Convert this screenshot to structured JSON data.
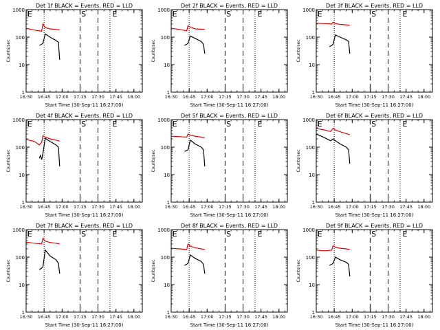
{
  "chart_data": [
    {
      "type": "line",
      "title": "Det 1f BLACK = Events, RED = LLD",
      "xlabel": "Start Time (30-Sep-11 16:27:00)",
      "ylabel": "Counts/sec",
      "y_scale": "log",
      "ylim": [
        1,
        1000
      ],
      "xlim": [
        "16:30",
        "18:07"
      ],
      "x_tick_labels": [
        "16:30",
        "16:45",
        "17:00",
        "17:15",
        "17:30",
        "17:45",
        "18:00"
      ],
      "y_tick_labels": [
        "1",
        "10",
        "100",
        "1000"
      ],
      "vlines": [
        {
          "time": "16:45",
          "style": "dotted"
        },
        {
          "time": "17:15",
          "style": "dashed"
        },
        {
          "time": "17:30",
          "style": "dashed"
        },
        {
          "time": "17:40",
          "style": "dotted"
        }
      ],
      "markers": [
        {
          "text": "E",
          "time": "16:31"
        },
        {
          "text": "S",
          "time": "17:16"
        },
        {
          "text": "E",
          "time": "17:42"
        }
      ],
      "series": [
        {
          "color": "#e00000",
          "x": [
            "16:30",
            "16:37",
            "16:43",
            "16:44",
            "16:46",
            "16:50",
            "16:55",
            "16:58"
          ],
          "y": [
            210,
            180,
            165,
            300,
            220,
            200,
            190,
            185
          ]
        },
        {
          "color": "#000000",
          "x": [
            "16:41",
            "16:43",
            "16:44",
            "16:46",
            "16:50",
            "16:55",
            "16:57",
            "16:58"
          ],
          "y": [
            50,
            55,
            60,
            130,
            100,
            75,
            65,
            15
          ]
        }
      ]
    },
    {
      "type": "line",
      "title": "Det 2f BLACK = Events, RED = LLD",
      "xlabel": "Start Time (30-Sep-11 16:27:00)",
      "ylabel": "Counts/sec",
      "y_scale": "log",
      "ylim": [
        1,
        1000
      ],
      "xlim": [
        "16:30",
        "18:07"
      ],
      "x_tick_labels": [
        "16:30",
        "16:45",
        "17:00",
        "17:15",
        "17:30",
        "17:45",
        "18:00"
      ],
      "y_tick_labels": [
        "1",
        "10",
        "100",
        "1000"
      ],
      "vlines": [
        {
          "time": "16:45",
          "style": "dotted"
        },
        {
          "time": "17:15",
          "style": "dashed"
        },
        {
          "time": "17:30",
          "style": "dashed"
        },
        {
          "time": "17:40",
          "style": "dotted"
        }
      ],
      "markers": [
        {
          "text": "E",
          "time": "16:31"
        },
        {
          "text": "S",
          "time": "17:16"
        },
        {
          "text": "E",
          "time": "17:42"
        }
      ],
      "series": [
        {
          "color": "#e00000",
          "x": [
            "16:30",
            "16:37",
            "16:43",
            "16:44",
            "16:46",
            "16:50",
            "16:55",
            "16:58"
          ],
          "y": [
            210,
            190,
            170,
            260,
            230,
            200,
            195,
            190
          ]
        },
        {
          "color": "#000000",
          "x": [
            "16:41",
            "16:43",
            "16:44",
            "16:46",
            "16:50",
            "16:55",
            "16:57",
            "16:58"
          ],
          "y": [
            50,
            55,
            60,
            110,
            90,
            70,
            55,
            25
          ]
        }
      ]
    },
    {
      "type": "line",
      "title": "Det 3f BLACK = Events, RED = LLD",
      "xlabel": "Start Time (30-Sep-11 16:27:00)",
      "ylabel": "Counts/sec",
      "y_scale": "log",
      "ylim": [
        1,
        1000
      ],
      "xlim": [
        "16:30",
        "18:07"
      ],
      "x_tick_labels": [
        "16:30",
        "16:45",
        "17:00",
        "17:15",
        "17:30",
        "17:45",
        "18:00"
      ],
      "y_tick_labels": [
        "1",
        "10",
        "100",
        "1000"
      ],
      "vlines": [
        {
          "time": "16:45",
          "style": "dotted"
        },
        {
          "time": "17:15",
          "style": "dashed"
        },
        {
          "time": "17:30",
          "style": "dashed"
        },
        {
          "time": "17:40",
          "style": "dotted"
        }
      ],
      "markers": [
        {
          "text": "E",
          "time": "16:31"
        },
        {
          "text": "S",
          "time": "17:16"
        },
        {
          "text": "E",
          "time": "17:42"
        }
      ],
      "series": [
        {
          "color": "#e00000",
          "x": [
            "16:30",
            "16:37",
            "16:43",
            "16:44",
            "16:46",
            "16:50",
            "16:55",
            "16:58"
          ],
          "y": [
            320,
            310,
            300,
            350,
            310,
            290,
            280,
            270
          ]
        },
        {
          "color": "#000000",
          "x": [
            "16:41",
            "16:43",
            "16:44",
            "16:46",
            "16:50",
            "16:55",
            "16:57",
            "16:58"
          ],
          "y": [
            45,
            50,
            55,
            120,
            100,
            80,
            70,
            25
          ]
        }
      ]
    },
    {
      "type": "line",
      "title": "Det 4f BLACK = Events, RED = LLD",
      "xlabel": "Start Time (30-Sep-11 16:27:00)",
      "ylabel": "Counts/sec",
      "y_scale": "log",
      "ylim": [
        1,
        1000
      ],
      "xlim": [
        "16:30",
        "18:07"
      ],
      "x_tick_labels": [
        "16:30",
        "16:45",
        "17:00",
        "17:15",
        "17:30",
        "17:45",
        "18:00"
      ],
      "y_tick_labels": [
        "1",
        "10",
        "100",
        "1000"
      ],
      "vlines": [
        {
          "time": "16:45",
          "style": "dotted"
        },
        {
          "time": "17:15",
          "style": "dashed"
        },
        {
          "time": "17:30",
          "style": "dashed"
        },
        {
          "time": "17:40",
          "style": "dotted"
        }
      ],
      "markers": [
        {
          "text": "E",
          "time": "16:31"
        },
        {
          "text": "S",
          "time": "17:16"
        },
        {
          "text": "E",
          "time": "17:42"
        }
      ],
      "series": [
        {
          "color": "#e00000",
          "x": [
            "16:30",
            "16:37",
            "16:41",
            "16:43",
            "16:44",
            "16:46",
            "16:50",
            "16:55",
            "16:58"
          ],
          "y": [
            190,
            160,
            120,
            150,
            260,
            230,
            200,
            180,
            165
          ]
        },
        {
          "color": "#000000",
          "x": [
            "16:41",
            "16:42",
            "16:43",
            "16:44",
            "16:46",
            "16:50",
            "16:55",
            "16:57",
            "16:58"
          ],
          "y": [
            40,
            50,
            35,
            60,
            210,
            160,
            120,
            100,
            20
          ]
        }
      ]
    },
    {
      "type": "line",
      "title": "Det 5f BLACK = Events, RED = LLD",
      "xlabel": "Start Time (30-Sep-11 16:27:00)",
      "ylabel": "Counts/sec",
      "y_scale": "log",
      "ylim": [
        1,
        1000
      ],
      "xlim": [
        "16:30",
        "18:07"
      ],
      "x_tick_labels": [
        "16:30",
        "16:45",
        "17:00",
        "17:15",
        "17:30",
        "17:45",
        "18:00"
      ],
      "y_tick_labels": [
        "1",
        "10",
        "100",
        "1000"
      ],
      "vlines": [
        {
          "time": "16:45",
          "style": "dotted"
        },
        {
          "time": "17:15",
          "style": "dashed"
        },
        {
          "time": "17:30",
          "style": "dashed"
        },
        {
          "time": "17:40",
          "style": "dotted"
        }
      ],
      "markers": [
        {
          "text": "E",
          "time": "16:31"
        },
        {
          "text": "S",
          "time": "17:16"
        },
        {
          "text": "E",
          "time": "17:42"
        }
      ],
      "series": [
        {
          "color": "#e00000",
          "x": [
            "16:30",
            "16:37",
            "16:43",
            "16:44",
            "16:46",
            "16:50",
            "16:55",
            "16:58"
          ],
          "y": [
            250,
            240,
            230,
            300,
            270,
            250,
            230,
            220
          ]
        },
        {
          "color": "#000000",
          "x": [
            "16:41",
            "16:43",
            "16:44",
            "16:46",
            "16:50",
            "16:55",
            "16:57",
            "16:58"
          ],
          "y": [
            70,
            75,
            80,
            180,
            130,
            100,
            80,
            20
          ]
        }
      ]
    },
    {
      "type": "line",
      "title": "Det 6f BLACK = Events, RED = LLD",
      "xlabel": "Start Time (30-Sep-11 16:27:00)",
      "ylabel": "Counts/sec",
      "y_scale": "log",
      "ylim": [
        1,
        1000
      ],
      "xlim": [
        "16:30",
        "18:07"
      ],
      "x_tick_labels": [
        "16:30",
        "16:45",
        "17:00",
        "17:15",
        "17:30",
        "17:45",
        "18:00"
      ],
      "y_tick_labels": [
        "1",
        "10",
        "100",
        "1000"
      ],
      "vlines": [
        {
          "time": "16:45",
          "style": "dotted"
        },
        {
          "time": "17:15",
          "style": "dashed"
        },
        {
          "time": "17:30",
          "style": "dashed"
        },
        {
          "time": "17:40",
          "style": "dotted"
        }
      ],
      "markers": [
        {
          "text": "E",
          "time": "16:31"
        },
        {
          "text": "S",
          "time": "17:16"
        },
        {
          "text": "E",
          "time": "17:42"
        }
      ],
      "series": [
        {
          "color": "#e00000",
          "x": [
            "16:30",
            "16:37",
            "16:42",
            "16:44",
            "16:46",
            "16:50",
            "16:55",
            "16:58"
          ],
          "y": [
            480,
            420,
            370,
            480,
            420,
            360,
            310,
            280
          ]
        },
        {
          "color": "#000000",
          "x": [
            "16:30",
            "16:37",
            "16:42",
            "16:44",
            "16:46",
            "16:50",
            "16:55",
            "16:57",
            "16:58"
          ],
          "y": [
            300,
            220,
            170,
            200,
            170,
            130,
            100,
            80,
            25
          ]
        }
      ]
    },
    {
      "type": "line",
      "title": "Det 7f BLACK = Events, RED = LLD",
      "xlabel": "Start Time (30-Sep-11 16:27:00)",
      "ylabel": "Counts/sec",
      "y_scale": "log",
      "ylim": [
        1,
        1000
      ],
      "xlim": [
        "16:30",
        "18:07"
      ],
      "x_tick_labels": [
        "16:30",
        "16:45",
        "17:00",
        "17:15",
        "17:30",
        "17:45",
        "18:00"
      ],
      "y_tick_labels": [
        "1",
        "10",
        "100",
        "1000"
      ],
      "vlines": [
        {
          "time": "16:45",
          "style": "dotted"
        },
        {
          "time": "17:15",
          "style": "dashed"
        },
        {
          "time": "17:30",
          "style": "dashed"
        },
        {
          "time": "17:40",
          "style": "dotted"
        }
      ],
      "markers": [
        {
          "text": "E",
          "time": "16:31"
        },
        {
          "text": "S",
          "time": "17:16"
        },
        {
          "text": "E",
          "time": "17:42"
        }
      ],
      "series": [
        {
          "color": "#e00000",
          "x": [
            "16:30",
            "16:37",
            "16:43",
            "16:44",
            "16:46",
            "16:50",
            "16:55",
            "16:58"
          ],
          "y": [
            350,
            320,
            300,
            480,
            380,
            340,
            320,
            300
          ]
        },
        {
          "color": "#000000",
          "x": [
            "16:41",
            "16:43",
            "16:44",
            "16:46",
            "16:50",
            "16:55",
            "16:57",
            "16:58"
          ],
          "y": [
            35,
            40,
            45,
            180,
            110,
            80,
            60,
            25
          ]
        }
      ]
    },
    {
      "type": "line",
      "title": "Det 8f BLACK = Events, RED = LLD",
      "xlabel": "Start Time (30-Sep-11 16:27:00)",
      "ylabel": "Counts/sec",
      "y_scale": "log",
      "ylim": [
        1,
        1000
      ],
      "xlim": [
        "16:30",
        "18:07"
      ],
      "x_tick_labels": [
        "16:30",
        "16:45",
        "17:00",
        "17:15",
        "17:30",
        "17:45",
        "18:00"
      ],
      "y_tick_labels": [
        "1",
        "10",
        "100",
        "1000"
      ],
      "vlines": [
        {
          "time": "16:45",
          "style": "dotted"
        },
        {
          "time": "17:15",
          "style": "dashed"
        },
        {
          "time": "17:30",
          "style": "dashed"
        },
        {
          "time": "17:40",
          "style": "dotted"
        }
      ],
      "markers": [
        {
          "text": "E",
          "time": "16:31"
        },
        {
          "text": "S",
          "time": "17:16"
        },
        {
          "text": "E",
          "time": "17:42"
        }
      ],
      "series": [
        {
          "color": "#e00000",
          "x": [
            "16:30",
            "16:37",
            "16:43",
            "16:44",
            "16:46",
            "16:50",
            "16:55",
            "16:58"
          ],
          "y": [
            210,
            200,
            190,
            300,
            250,
            220,
            200,
            190
          ]
        },
        {
          "color": "#000000",
          "x": [
            "16:41",
            "16:43",
            "16:44",
            "16:46",
            "16:50",
            "16:55",
            "16:57",
            "16:58"
          ],
          "y": [
            50,
            55,
            60,
            120,
            90,
            70,
            55,
            25
          ]
        }
      ]
    },
    {
      "type": "line",
      "title": "Det 9f BLACK = Events, RED = LLD",
      "xlabel": "Start Time (30-Sep-11 16:27:00)",
      "ylabel": "Counts/sec",
      "y_scale": "log",
      "ylim": [
        1,
        1000
      ],
      "xlim": [
        "16:30",
        "18:07"
      ],
      "x_tick_labels": [
        "16:30",
        "16:45",
        "17:00",
        "17:15",
        "17:30",
        "17:45",
        "18:00"
      ],
      "y_tick_labels": [
        "1",
        "10",
        "100",
        "1000"
      ],
      "vlines": [
        {
          "time": "16:45",
          "style": "dotted"
        },
        {
          "time": "17:15",
          "style": "dashed"
        },
        {
          "time": "17:30",
          "style": "dashed"
        },
        {
          "time": "17:40",
          "style": "dotted"
        }
      ],
      "markers": [
        {
          "text": "E",
          "time": "16:31"
        },
        {
          "text": "S",
          "time": "17:16"
        },
        {
          "text": "E",
          "time": "17:42"
        }
      ],
      "series": [
        {
          "color": "#e00000",
          "x": [
            "16:30",
            "16:37",
            "16:43",
            "16:44",
            "16:46",
            "16:50",
            "16:55",
            "16:58"
          ],
          "y": [
            180,
            170,
            180,
            260,
            230,
            210,
            200,
            190
          ]
        },
        {
          "color": "#000000",
          "x": [
            "16:41",
            "16:43",
            "16:44",
            "16:46",
            "16:50",
            "16:55",
            "16:57",
            "16:58"
          ],
          "y": [
            50,
            55,
            60,
            100,
            80,
            65,
            55,
            20
          ]
        }
      ]
    }
  ]
}
